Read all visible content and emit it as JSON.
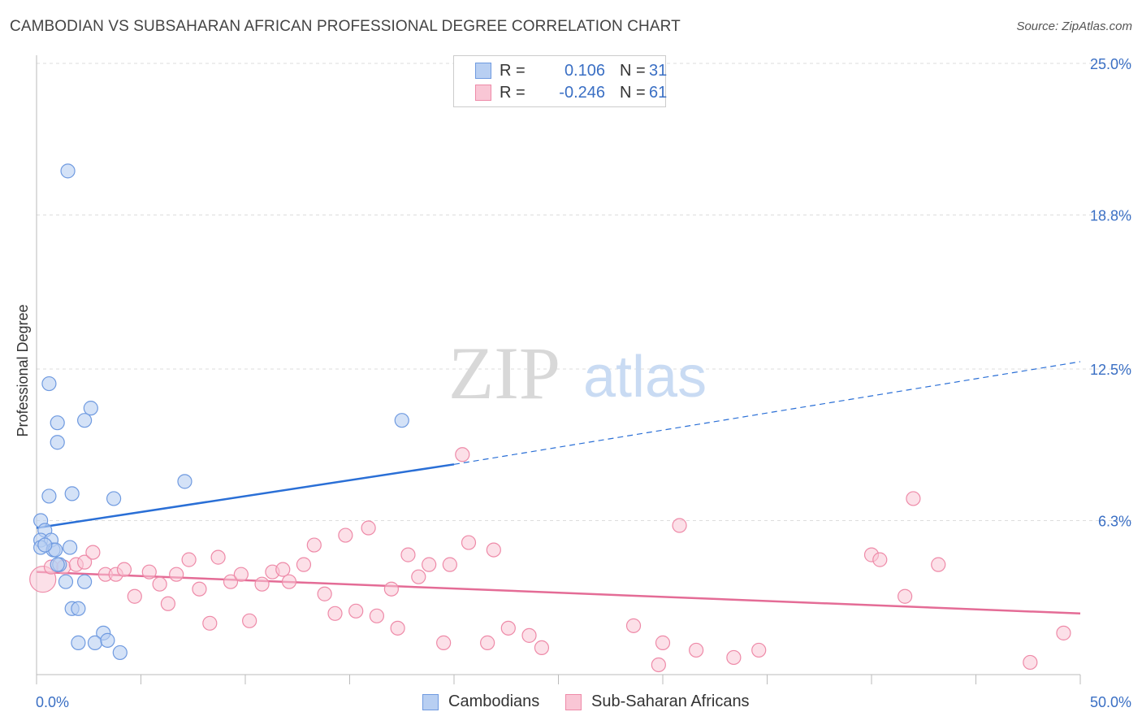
{
  "title": "CAMBODIAN VS SUBSAHARAN AFRICAN PROFESSIONAL DEGREE CORRELATION CHART",
  "source": "Source: ZipAtlas.com",
  "watermark": {
    "zip": "ZIP",
    "atlas": "atlas"
  },
  "legend": {
    "rows": [
      {
        "r_label": "R =",
        "r_value": "0.106",
        "n_label": "N =",
        "n_value": "31"
      },
      {
        "r_label": "R =",
        "r_value": "-0.246",
        "n_label": "N =",
        "n_value": "61"
      }
    ]
  },
  "bottom_legend": [
    "Cambodians",
    "Sub-Saharan Africans"
  ],
  "colors": {
    "cambodian_fill": "#b8cff2",
    "cambodian_stroke": "#6f9ae0",
    "cambodian_line": "#2a6fd6",
    "african_fill": "#f9c6d5",
    "african_stroke": "#ee8aa8",
    "african_line": "#e46c96",
    "tick_label": "#3a6fc4",
    "grid": "#dddddd"
  },
  "chart_data": {
    "type": "scatter",
    "title": "CAMBODIAN VS SUBSAHARAN AFRICAN PROFESSIONAL DEGREE CORRELATION CHART",
    "xlabel": "",
    "ylabel": "Professional Degree",
    "xlim": [
      0,
      50
    ],
    "ylim": [
      0,
      26
    ],
    "x_tick_labels": [
      "0.0%",
      "50.0%"
    ],
    "y_ticks": [
      6.3,
      12.5,
      18.8,
      25.0
    ],
    "y_tick_labels": [
      "6.3%",
      "12.5%",
      "18.8%",
      "25.0%"
    ],
    "series": [
      {
        "name": "Cambodians",
        "r": 0.106,
        "n": 31,
        "trend": {
          "x0": 0,
          "y0": 6.0,
          "x1": 20,
          "y1": 8.6,
          "dash_to_x": 50,
          "dash_to_y": 12.8
        },
        "points": [
          [
            1.5,
            20.6
          ],
          [
            0.6,
            11.9
          ],
          [
            2.6,
            10.9
          ],
          [
            1.0,
            10.3
          ],
          [
            2.3,
            10.4
          ],
          [
            1.0,
            9.5
          ],
          [
            17.5,
            10.4
          ],
          [
            7.1,
            7.9
          ],
          [
            0.6,
            7.3
          ],
          [
            1.7,
            7.4
          ],
          [
            3.7,
            7.2
          ],
          [
            0.2,
            6.3
          ],
          [
            0.4,
            5.9
          ],
          [
            0.2,
            5.5
          ],
          [
            0.7,
            5.5
          ],
          [
            0.2,
            5.2
          ],
          [
            0.8,
            5.1
          ],
          [
            0.9,
            5.1
          ],
          [
            1.6,
            5.2
          ],
          [
            1.1,
            4.5
          ],
          [
            1.4,
            3.8
          ],
          [
            2.3,
            3.8
          ],
          [
            1.7,
            2.7
          ],
          [
            2.0,
            2.7
          ],
          [
            3.2,
            1.7
          ],
          [
            2.0,
            1.3
          ],
          [
            2.8,
            1.3
          ],
          [
            3.4,
            1.4
          ],
          [
            4.0,
            0.9
          ],
          [
            0.4,
            5.3
          ],
          [
            1.0,
            4.5
          ]
        ]
      },
      {
        "name": "Sub-Saharan Africans",
        "r": -0.246,
        "n": 61,
        "trend": {
          "x0": 0,
          "y0": 4.2,
          "x1": 50,
          "y1": 2.5
        },
        "points": [
          [
            0.3,
            3.9
          ],
          [
            0.7,
            4.4
          ],
          [
            1.3,
            4.4
          ],
          [
            1.9,
            4.5
          ],
          [
            2.3,
            4.6
          ],
          [
            2.7,
            5.0
          ],
          [
            3.3,
            4.1
          ],
          [
            3.8,
            4.1
          ],
          [
            4.2,
            4.3
          ],
          [
            4.7,
            3.2
          ],
          [
            5.4,
            4.2
          ],
          [
            5.9,
            3.7
          ],
          [
            6.3,
            2.9
          ],
          [
            6.7,
            4.1
          ],
          [
            7.3,
            4.7
          ],
          [
            7.8,
            3.5
          ],
          [
            8.3,
            2.1
          ],
          [
            8.7,
            4.8
          ],
          [
            9.3,
            3.8
          ],
          [
            9.8,
            4.1
          ],
          [
            10.2,
            2.2
          ],
          [
            10.8,
            3.7
          ],
          [
            11.3,
            4.2
          ],
          [
            11.8,
            4.3
          ],
          [
            12.1,
            3.8
          ],
          [
            12.8,
            4.5
          ],
          [
            13.3,
            5.3
          ],
          [
            13.8,
            3.3
          ],
          [
            14.3,
            2.5
          ],
          [
            14.8,
            5.7
          ],
          [
            15.3,
            2.6
          ],
          [
            15.9,
            6.0
          ],
          [
            16.3,
            2.4
          ],
          [
            17.0,
            3.5
          ],
          [
            17.3,
            1.9
          ],
          [
            17.8,
            4.9
          ],
          [
            18.3,
            4.0
          ],
          [
            18.8,
            4.5
          ],
          [
            19.5,
            1.3
          ],
          [
            19.8,
            4.5
          ],
          [
            20.4,
            9.0
          ],
          [
            20.7,
            5.4
          ],
          [
            21.6,
            1.3
          ],
          [
            21.9,
            5.1
          ],
          [
            22.6,
            1.9
          ],
          [
            23.6,
            1.6
          ],
          [
            24.2,
            1.1
          ],
          [
            28.6,
            2.0
          ],
          [
            29.8,
            0.4
          ],
          [
            30.0,
            1.3
          ],
          [
            30.8,
            6.1
          ],
          [
            31.6,
            1.0
          ],
          [
            33.4,
            0.7
          ],
          [
            34.6,
            1.0
          ],
          [
            40.0,
            4.9
          ],
          [
            40.4,
            4.7
          ],
          [
            41.6,
            3.2
          ],
          [
            42.0,
            7.2
          ],
          [
            43.2,
            4.5
          ],
          [
            47.6,
            0.5
          ],
          [
            49.2,
            1.7
          ]
        ]
      }
    ]
  }
}
